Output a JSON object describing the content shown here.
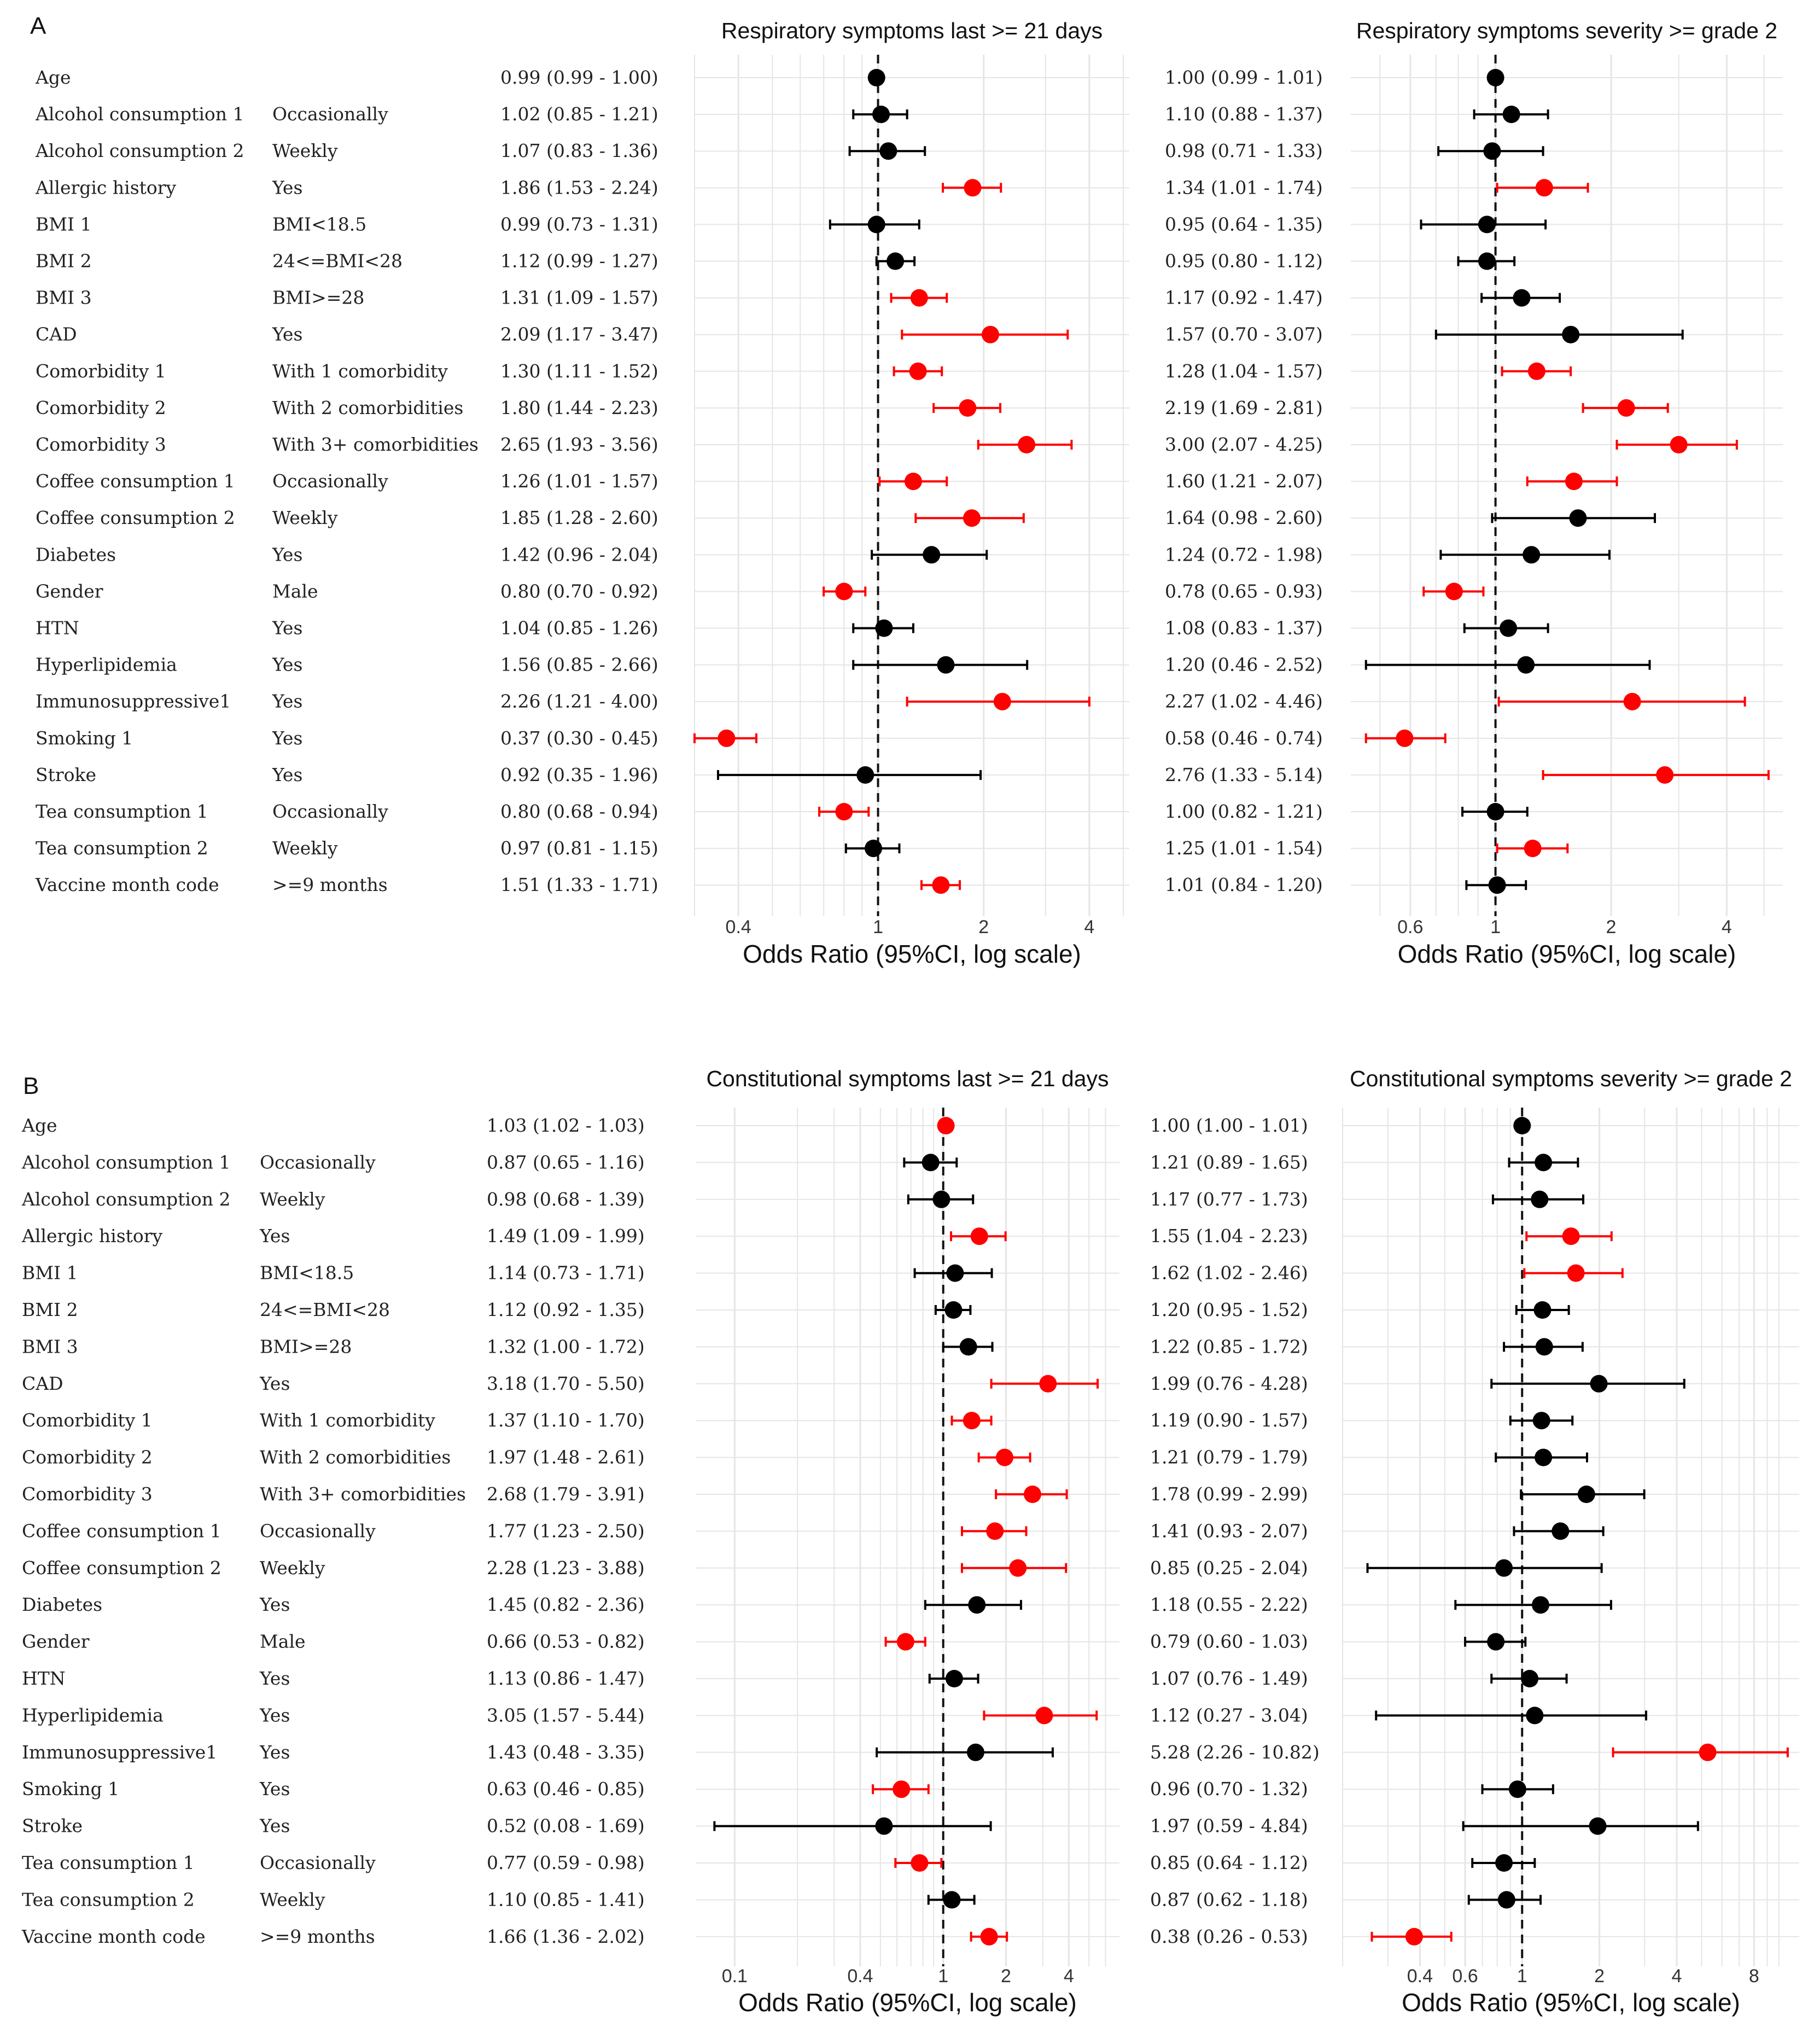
{
  "panel_letters": [
    "A",
    "B"
  ],
  "colors": {
    "significant": "#ff0000",
    "nonsignificant": "#000000",
    "grid": "#e5e5e5",
    "ref_line": "#111111"
  },
  "chart_data": [
    {
      "type": "forest",
      "panel": "A",
      "xlabel": "Odds Ratio (95%CI, log scale)",
      "rows": [
        {
          "variable": "Age",
          "level": ""
        },
        {
          "variable": "Alcohol consumption 1",
          "level": "Occasionally"
        },
        {
          "variable": "Alcohol consumption 2",
          "level": "Weekly"
        },
        {
          "variable": "Allergic history",
          "level": "Yes"
        },
        {
          "variable": "BMI 1",
          "level": "BMI<18.5"
        },
        {
          "variable": "BMI 2",
          "level": "24<=BMI<28"
        },
        {
          "variable": "BMI 3",
          "level": "BMI>=28"
        },
        {
          "variable": "CAD",
          "level": "Yes"
        },
        {
          "variable": "Comorbidity 1",
          "level": "With 1 comorbidity"
        },
        {
          "variable": "Comorbidity 2",
          "level": "With 2 comorbidities"
        },
        {
          "variable": "Comorbidity 3",
          "level": "With 3+ comorbidities"
        },
        {
          "variable": "Coffee consumption 1",
          "level": "Occasionally"
        },
        {
          "variable": "Coffee consumption 2",
          "level": "Weekly"
        },
        {
          "variable": "Diabetes",
          "level": "Yes"
        },
        {
          "variable": "Gender",
          "level": "Male"
        },
        {
          "variable": "HTN",
          "level": "Yes"
        },
        {
          "variable": "Hyperlipidemia",
          "level": "Yes"
        },
        {
          "variable": "Immunosuppressive1",
          "level": "Yes"
        },
        {
          "variable": "Smoking 1",
          "level": "Yes"
        },
        {
          "variable": "Stroke",
          "level": "Yes"
        },
        {
          "variable": "Tea consumption 1",
          "level": "Occasionally"
        },
        {
          "variable": "Tea consumption 2",
          "level": "Weekly"
        },
        {
          "variable": "Vaccine month code",
          "level": ">=9 months"
        }
      ],
      "subplots": [
        {
          "title": "Respiratory symptoms last >= 21 days",
          "xlim": [
            0.3,
            5.2
          ],
          "ticks": [
            0.4,
            1,
            2,
            4
          ],
          "tick_labels": [
            "0.4",
            "1",
            "2",
            "4"
          ],
          "grid": [
            0.3,
            0.4,
            0.5,
            0.6,
            0.7,
            0.8,
            0.9,
            1,
            2,
            3,
            4,
            5
          ],
          "or_text": [
            "0.99 (0.99 - 1.00)",
            "1.02 (0.85 - 1.21)",
            "1.07 (0.83 - 1.36)",
            "1.86 (1.53 - 2.24)",
            "0.99 (0.73 - 1.31)",
            "1.12 (0.99 - 1.27)",
            "1.31 (1.09 - 1.57)",
            "2.09 (1.17 - 3.47)",
            "1.30 (1.11 - 1.52)",
            "1.80 (1.44 - 2.23)",
            "2.65 (1.93 - 3.56)",
            "1.26 (1.01 - 1.57)",
            "1.85 (1.28 - 2.60)",
            "1.42 (0.96 - 2.04)",
            "0.80 (0.70 - 0.92)",
            "1.04 (0.85 - 1.26)",
            "1.56 (0.85 - 2.66)",
            "2.26 (1.21 - 4.00)",
            "0.37 (0.30 - 0.45)",
            "0.92 (0.35 - 1.96)",
            "0.80 (0.68 - 0.94)",
            "0.97 (0.81 - 1.15)",
            "1.51 (1.33 - 1.71)"
          ],
          "or": [
            0.99,
            1.02,
            1.07,
            1.86,
            0.99,
            1.12,
            1.31,
            2.09,
            1.3,
            1.8,
            2.65,
            1.26,
            1.85,
            1.42,
            0.8,
            1.04,
            1.56,
            2.26,
            0.37,
            0.92,
            0.8,
            0.97,
            1.51
          ],
          "lo": [
            0.99,
            0.85,
            0.83,
            1.53,
            0.73,
            0.99,
            1.09,
            1.17,
            1.11,
            1.44,
            1.93,
            1.01,
            1.28,
            0.96,
            0.7,
            0.85,
            0.85,
            1.21,
            0.3,
            0.35,
            0.68,
            0.81,
            1.33
          ],
          "hi": [
            1.0,
            1.21,
            1.36,
            2.24,
            1.31,
            1.27,
            1.57,
            3.47,
            1.52,
            2.23,
            3.56,
            1.57,
            2.6,
            2.04,
            0.92,
            1.26,
            2.66,
            4.0,
            0.45,
            1.96,
            0.94,
            1.15,
            1.71
          ]
        },
        {
          "title": "Respiratory symptoms severity >= grade 2",
          "xlim": [
            0.42,
            5.6
          ],
          "ticks": [
            0.6,
            1,
            2,
            4
          ],
          "tick_labels": [
            "0.6",
            "1",
            "2",
            "4"
          ],
          "grid": [
            0.5,
            0.6,
            0.7,
            0.8,
            0.9,
            1,
            2,
            3,
            4,
            5
          ],
          "or_text": [
            "1.00 (0.99 - 1.01)",
            "1.10 (0.88 - 1.37)",
            "0.98 (0.71 - 1.33)",
            "1.34 (1.01 - 1.74)",
            "0.95 (0.64 - 1.35)",
            "0.95 (0.80 - 1.12)",
            "1.17 (0.92 - 1.47)",
            "1.57 (0.70 - 3.07)",
            "1.28 (1.04 - 1.57)",
            "2.19 (1.69 - 2.81)",
            "3.00 (2.07 - 4.25)",
            "1.60 (1.21 - 2.07)",
            "1.64 (0.98 - 2.60)",
            "1.24 (0.72 - 1.98)",
            "0.78 (0.65 - 0.93)",
            "1.08 (0.83 - 1.37)",
            "1.20 (0.46 - 2.52)",
            "2.27 (1.02 - 4.46)",
            "0.58 (0.46 - 0.74)",
            "2.76 (1.33 - 5.14)",
            "1.00 (0.82 - 1.21)",
            "1.25 (1.01 - 1.54)",
            "1.01 (0.84 - 1.20)"
          ],
          "or": [
            1.0,
            1.1,
            0.98,
            1.34,
            0.95,
            0.95,
            1.17,
            1.57,
            1.28,
            2.19,
            3.0,
            1.6,
            1.64,
            1.24,
            0.78,
            1.08,
            1.2,
            2.27,
            0.58,
            2.76,
            1.0,
            1.25,
            1.01
          ],
          "lo": [
            0.99,
            0.88,
            0.71,
            1.01,
            0.64,
            0.8,
            0.92,
            0.7,
            1.04,
            1.69,
            2.07,
            1.21,
            0.98,
            0.72,
            0.65,
            0.83,
            0.46,
            1.02,
            0.46,
            1.33,
            0.82,
            1.01,
            0.84
          ],
          "hi": [
            1.01,
            1.37,
            1.33,
            1.74,
            1.35,
            1.12,
            1.47,
            3.07,
            1.57,
            2.81,
            4.25,
            2.07,
            2.6,
            1.98,
            0.93,
            1.37,
            2.52,
            4.46,
            0.74,
            5.14,
            1.21,
            1.54,
            1.2
          ]
        }
      ]
    },
    {
      "type": "forest",
      "panel": "B",
      "xlabel": "Odds Ratio (95%CI, log scale)",
      "rows": [
        {
          "variable": "Age",
          "level": ""
        },
        {
          "variable": "Alcohol consumption 1",
          "level": "Occasionally"
        },
        {
          "variable": "Alcohol consumption 2",
          "level": "Weekly"
        },
        {
          "variable": "Allergic history",
          "level": "Yes"
        },
        {
          "variable": "BMI 1",
          "level": "BMI<18.5"
        },
        {
          "variable": "BMI 2",
          "level": "24<=BMI<28"
        },
        {
          "variable": "BMI 3",
          "level": "BMI>=28"
        },
        {
          "variable": "CAD",
          "level": "Yes"
        },
        {
          "variable": "Comorbidity 1",
          "level": "With 1 comorbidity"
        },
        {
          "variable": "Comorbidity 2",
          "level": "With 2 comorbidities"
        },
        {
          "variable": "Comorbidity 3",
          "level": "With 3+ comorbidities"
        },
        {
          "variable": "Coffee consumption 1",
          "level": "Occasionally"
        },
        {
          "variable": "Coffee consumption 2",
          "level": "Weekly"
        },
        {
          "variable": "Diabetes",
          "level": "Yes"
        },
        {
          "variable": "Gender",
          "level": "Male"
        },
        {
          "variable": "HTN",
          "level": "Yes"
        },
        {
          "variable": "Hyperlipidemia",
          "level": "Yes"
        },
        {
          "variable": "Immunosuppressive1",
          "level": "Yes"
        },
        {
          "variable": "Smoking 1",
          "level": "Yes"
        },
        {
          "variable": "Stroke",
          "level": "Yes"
        },
        {
          "variable": "Tea consumption 1",
          "level": "Occasionally"
        },
        {
          "variable": "Tea consumption 2",
          "level": "Weekly"
        },
        {
          "variable": "Vaccine month code",
          "level": ">=9 months"
        }
      ],
      "subplots": [
        {
          "title": "Constitutional symptoms last >= 21 days",
          "xlim": [
            0.065,
            7.0
          ],
          "ticks": [
            0.1,
            0.4,
            1,
            2,
            4
          ],
          "tick_labels": [
            "0.1",
            "0.4",
            "1",
            "2",
            "4"
          ],
          "grid": [
            0.1,
            0.2,
            0.3,
            0.4,
            0.5,
            0.6,
            0.7,
            0.8,
            0.9,
            1,
            2,
            3,
            4,
            5,
            6
          ],
          "or_text": [
            "1.03 (1.02 - 1.03)",
            "0.87 (0.65 - 1.16)",
            "0.98 (0.68 - 1.39)",
            "1.49 (1.09 - 1.99)",
            "1.14 (0.73 - 1.71)",
            "1.12 (0.92 - 1.35)",
            "1.32 (1.00 - 1.72)",
            "3.18 (1.70 - 5.50)",
            "1.37 (1.10 - 1.70)",
            "1.97 (1.48 - 2.61)",
            "2.68 (1.79 - 3.91)",
            "1.77 (1.23 - 2.50)",
            "2.28 (1.23 - 3.88)",
            "1.45 (0.82 - 2.36)",
            "0.66 (0.53 - 0.82)",
            "1.13 (0.86 - 1.47)",
            "3.05 (1.57 - 5.44)",
            "1.43 (0.48 - 3.35)",
            "0.63 (0.46 - 0.85)",
            "0.52 (0.08 - 1.69)",
            "0.77 (0.59 - 0.98)",
            "1.10 (0.85 - 1.41)",
            "1.66 (1.36 - 2.02)"
          ],
          "or": [
            1.03,
            0.87,
            0.98,
            1.49,
            1.14,
            1.12,
            1.32,
            3.18,
            1.37,
            1.97,
            2.68,
            1.77,
            2.28,
            1.45,
            0.66,
            1.13,
            3.05,
            1.43,
            0.63,
            0.52,
            0.77,
            1.1,
            1.66
          ],
          "lo": [
            1.02,
            0.65,
            0.68,
            1.09,
            0.73,
            0.92,
            1.0,
            1.7,
            1.1,
            1.48,
            1.79,
            1.23,
            1.23,
            0.82,
            0.53,
            0.86,
            1.57,
            0.48,
            0.46,
            0.08,
            0.59,
            0.85,
            1.36
          ],
          "hi": [
            1.03,
            1.16,
            1.39,
            1.99,
            1.71,
            1.35,
            1.72,
            5.5,
            1.7,
            2.61,
            3.91,
            2.5,
            3.88,
            2.36,
            0.82,
            1.47,
            5.44,
            3.35,
            0.85,
            1.69,
            0.98,
            1.41,
            2.02
          ]
        },
        {
          "title": "Constitutional symptoms severity >= grade 2",
          "xlim": [
            0.2,
            12.0
          ],
          "ticks": [
            0.4,
            0.6,
            1,
            2,
            4,
            8
          ],
          "tick_labels": [
            "0.4",
            "0.6",
            "1",
            "2",
            "4",
            "8"
          ],
          "grid": [
            0.2,
            0.3,
            0.4,
            0.5,
            0.6,
            0.7,
            0.8,
            0.9,
            1,
            2,
            3,
            4,
            5,
            6,
            7,
            8,
            9,
            10
          ],
          "or_text": [
            "1.00 (1.00 - 1.01)",
            "1.21 (0.89 - 1.65)",
            "1.17 (0.77 - 1.73)",
            "1.55 (1.04 - 2.23)",
            "1.62 (1.02 - 2.46)",
            "1.20 (0.95 - 1.52)",
            "1.22 (0.85 - 1.72)",
            "1.99 (0.76 - 4.28)",
            "1.19 (0.90 - 1.57)",
            "1.21 (0.79 - 1.79)",
            "1.78 (0.99 - 2.99)",
            "1.41 (0.93 - 2.07)",
            "0.85 (0.25 - 2.04)",
            "1.18 (0.55 - 2.22)",
            "0.79 (0.60 - 1.03)",
            "1.07 (0.76 - 1.49)",
            "1.12 (0.27 - 3.04)",
            "5.28 (2.26 - 10.82)",
            "0.96 (0.70 - 1.32)",
            "1.97 (0.59 - 4.84)",
            "0.85 (0.64 - 1.12)",
            "0.87 (0.62 - 1.18)",
            "0.38 (0.26 - 0.53)"
          ],
          "or": [
            1.0,
            1.21,
            1.17,
            1.55,
            1.62,
            1.2,
            1.22,
            1.99,
            1.19,
            1.21,
            1.78,
            1.41,
            0.85,
            1.18,
            0.79,
            1.07,
            1.12,
            5.28,
            0.96,
            1.97,
            0.85,
            0.87,
            0.38
          ],
          "lo": [
            1.0,
            0.89,
            0.77,
            1.04,
            1.02,
            0.95,
            0.85,
            0.76,
            0.9,
            0.79,
            0.99,
            0.93,
            0.25,
            0.55,
            0.6,
            0.76,
            0.27,
            2.26,
            0.7,
            0.59,
            0.64,
            0.62,
            0.26
          ],
          "hi": [
            1.01,
            1.65,
            1.73,
            2.23,
            2.46,
            1.52,
            1.72,
            4.28,
            1.57,
            1.79,
            2.99,
            2.07,
            2.04,
            2.22,
            1.03,
            1.49,
            3.04,
            10.82,
            1.32,
            4.84,
            1.12,
            1.18,
            0.53
          ]
        }
      ]
    }
  ]
}
